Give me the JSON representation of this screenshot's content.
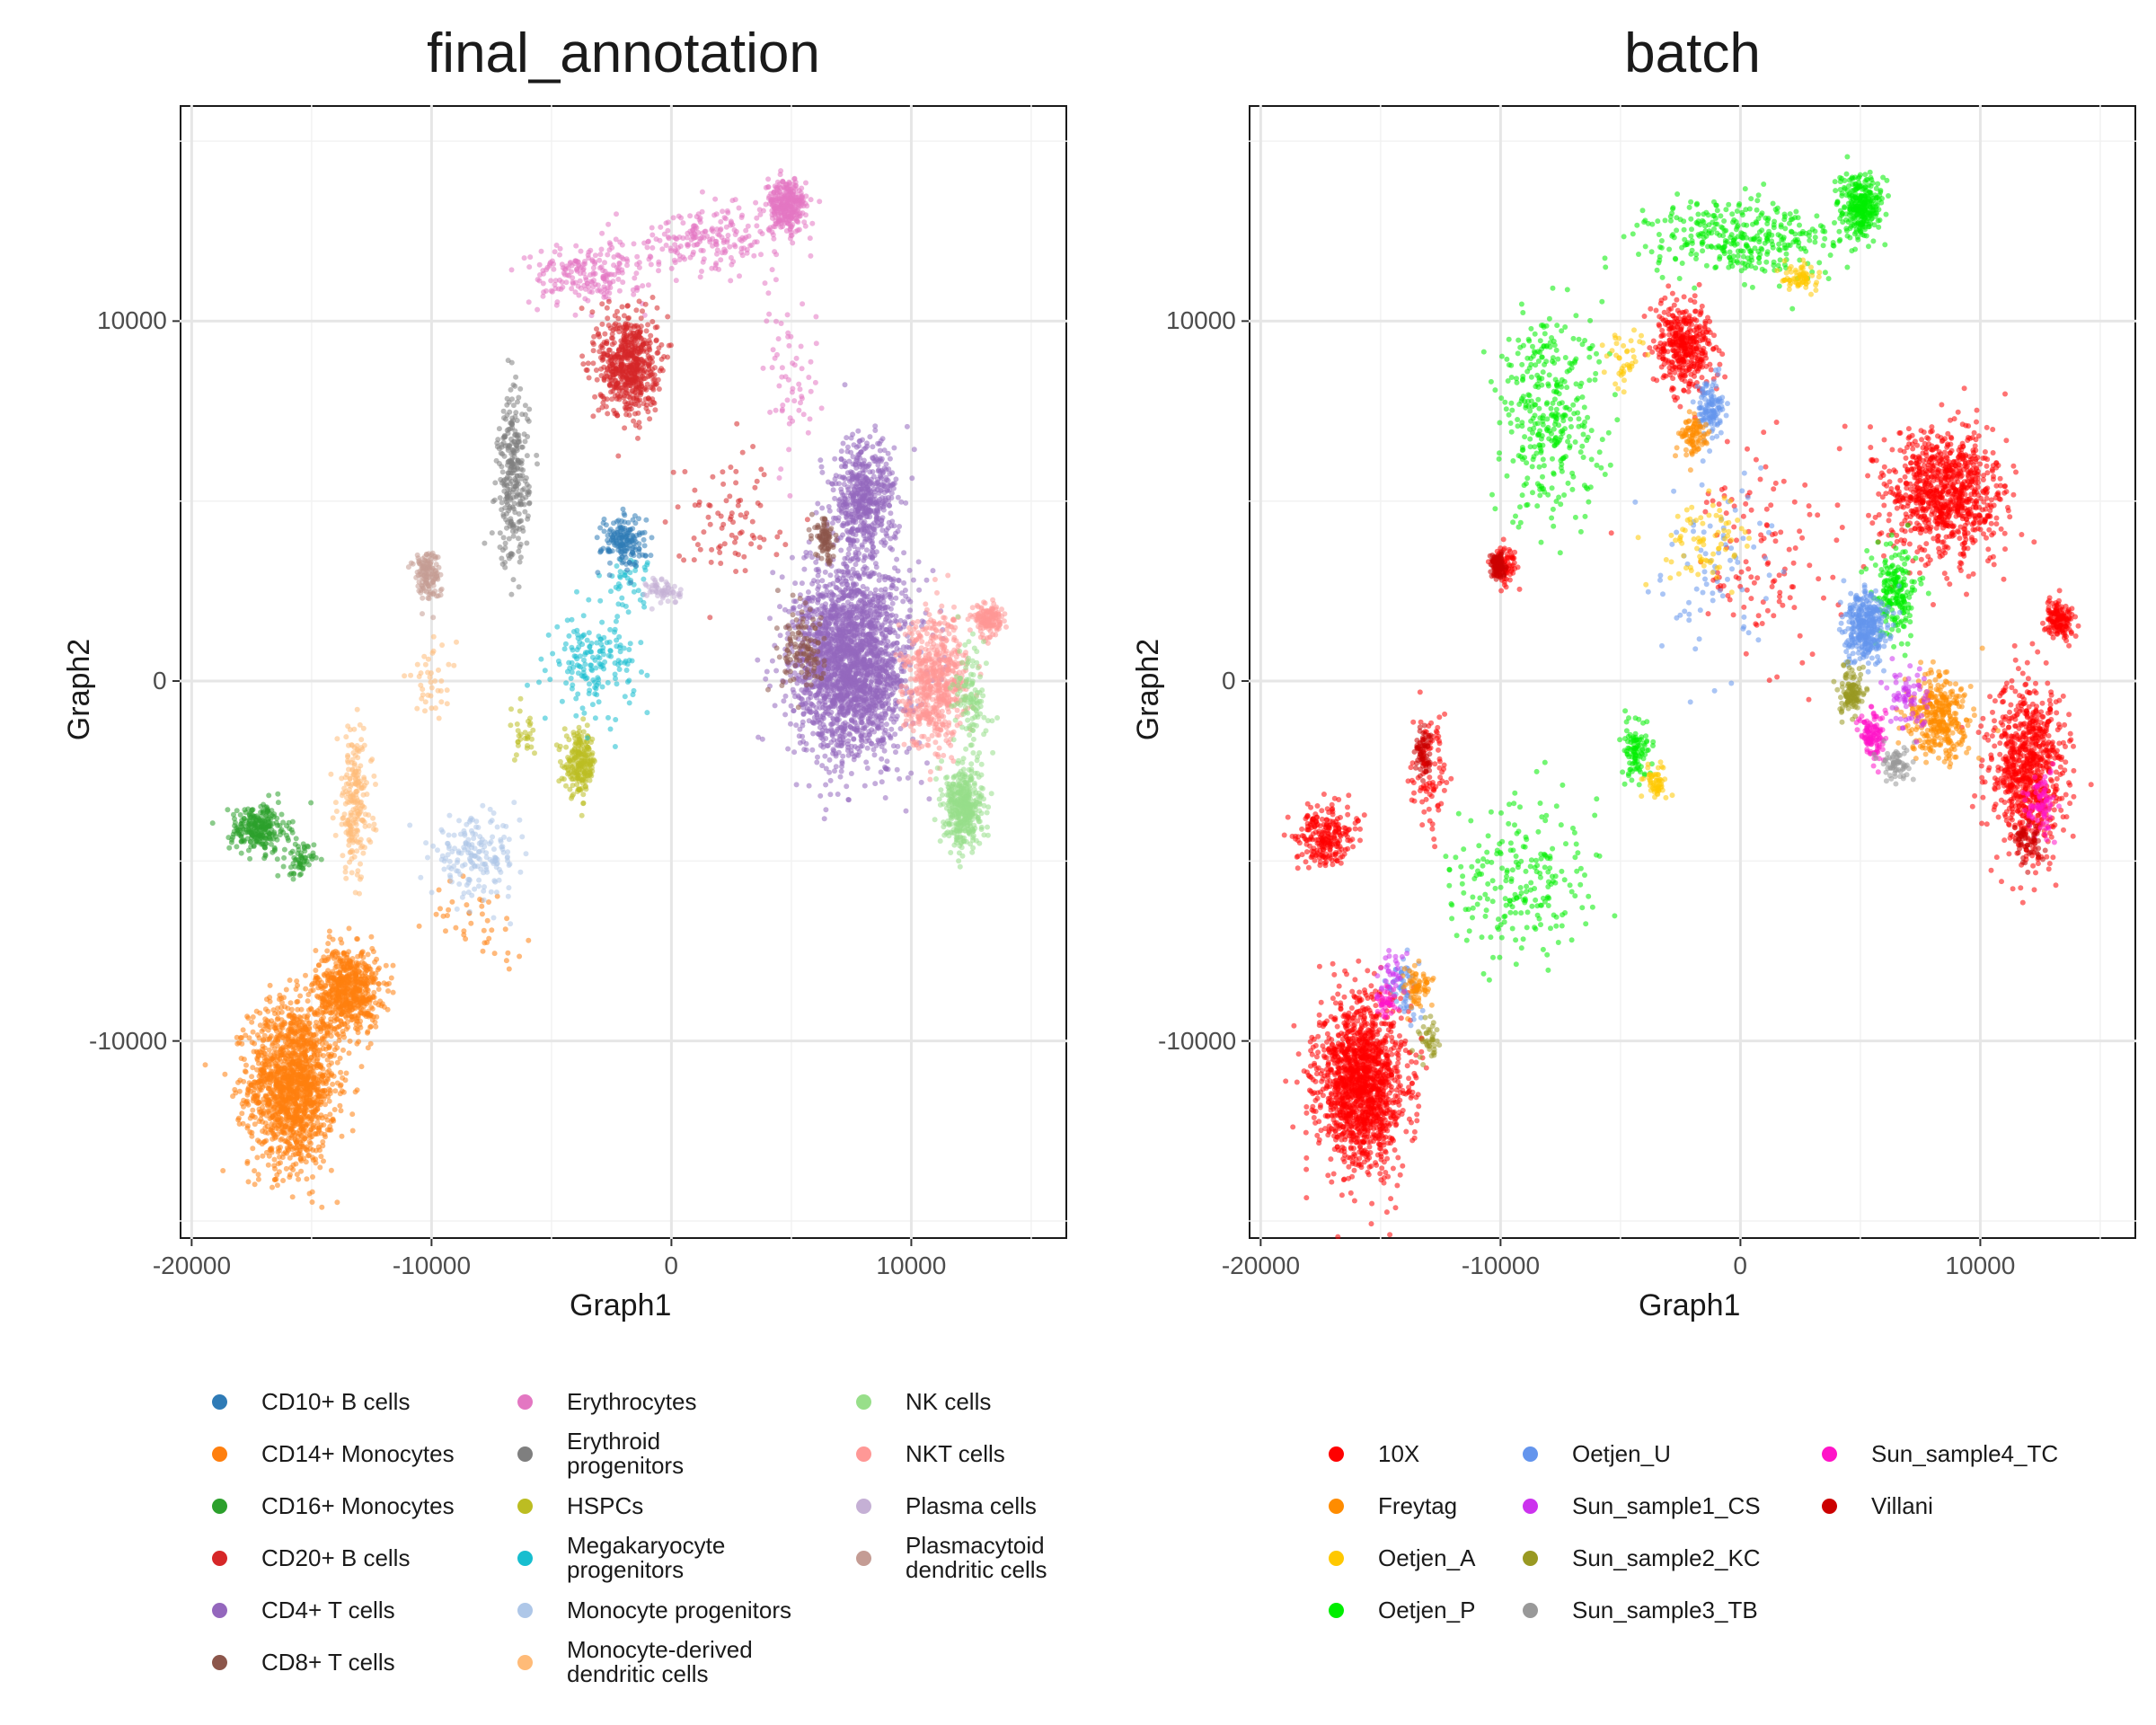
{
  "colors": {
    "celltypes": {
      "CD10+ B cells": "#2f7bb6",
      "CD14+ Monocytes": "#ff7f0e",
      "CD16+ Monocytes": "#2ca02c",
      "CD20+ B cells": "#d62728",
      "CD4+ T cells": "#9467bd",
      "CD8+ T cells": "#8c564b",
      "Erythrocytes": "#e377c2",
      "Erythroid progenitors": "#7f7f7f",
      "HSPCs": "#bcbd22",
      "Megakaryocyte progenitors": "#17becf",
      "Monocyte progenitors": "#aec7e8",
      "Monocyte-derived dendritic cells": "#ffbb78",
      "NK cells": "#98df8a",
      "NKT cells": "#ff9896",
      "Plasma cells": "#c5b0d5",
      "Plasmacytoid dendritic cells": "#c49c94"
    },
    "batches": {
      "10X": "#ff0000",
      "Freytag": "#ff8c00",
      "Oetjen_A": "#ffc800",
      "Oetjen_P": "#00ee00",
      "Oetjen_U": "#6495ed",
      "Sun_sample1_CS": "#cc33ee",
      "Sun_sample2_KC": "#999922",
      "Sun_sample3_TB": "#999999",
      "Sun_sample4_TC": "#ff14c8",
      "Villani": "#cc0000"
    }
  },
  "chart_data": [
    {
      "type": "scatter",
      "title": "final_annotation",
      "xlabel": "Graph1",
      "ylabel": "Graph2",
      "xlim": [
        -20500,
        16500
      ],
      "ylim": [
        -15500,
        16000
      ],
      "xticks": [
        -20000,
        -10000,
        0,
        10000
      ],
      "yticks": [
        -10000,
        0,
        10000
      ],
      "xtick_labels": [
        "-20000",
        "-10000",
        "0",
        "10000"
      ],
      "ytick_labels": [
        "-10000",
        "0",
        "10000"
      ],
      "grid": true,
      "legend_position": "bottom",
      "legend_entries": [
        "CD10+ B cells",
        "CD14+ Monocytes",
        "CD16+ Monocytes",
        "CD20+ B cells",
        "CD4+ T cells",
        "CD8+ T cells",
        "Erythrocytes",
        "Erythroid\nprogenitors",
        "HSPCs",
        "Megakaryocyte\nprogenitors",
        "Monocyte progenitors",
        "Monocyte-derived\ndendritic cells",
        "NK cells",
        "NKT cells",
        "Plasma cells",
        "Plasmacytoid\ndendritic cells"
      ],
      "clusters": [
        {
          "label": "CD14+ Monocytes",
          "center": [
            -15800,
            -11200
          ],
          "spread": [
            1500,
            1900
          ],
          "n": 1500
        },
        {
          "label": "CD14+ Monocytes",
          "center": [
            -13500,
            -8600
          ],
          "spread": [
            1100,
            1000
          ],
          "n": 650
        },
        {
          "label": "CD14+ Monocytes",
          "center": [
            -8000,
            -6600
          ],
          "spread": [
            1800,
            900
          ],
          "n": 40
        },
        {
          "label": "CD16+ Monocytes",
          "center": [
            -17200,
            -4100
          ],
          "spread": [
            1000,
            550
          ],
          "n": 260
        },
        {
          "label": "CD16+ Monocytes",
          "center": [
            -15500,
            -5000
          ],
          "spread": [
            500,
            400
          ],
          "n": 60
        },
        {
          "label": "Monocyte-derived dendritic cells",
          "center": [
            -13200,
            -3400
          ],
          "spread": [
            600,
            1700
          ],
          "n": 220
        },
        {
          "label": "Monocyte-derived dendritic cells",
          "center": [
            -10000,
            0
          ],
          "spread": [
            900,
            800
          ],
          "n": 40
        },
        {
          "label": "Monocyte progenitors",
          "center": [
            -8200,
            -4900
          ],
          "spread": [
            1500,
            900
          ],
          "n": 180
        },
        {
          "label": "HSPCs",
          "center": [
            -3800,
            -2300
          ],
          "spread": [
            550,
            700
          ],
          "n": 220
        },
        {
          "label": "HSPCs",
          "center": [
            -6200,
            -1500
          ],
          "spread": [
            600,
            600
          ],
          "n": 30
        },
        {
          "label": "Megakaryocyte progenitors",
          "center": [
            -3200,
            500
          ],
          "spread": [
            1400,
            1100
          ],
          "n": 170
        },
        {
          "label": "Megakaryocyte progenitors",
          "center": [
            -1800,
            2800
          ],
          "spread": [
            800,
            600
          ],
          "n": 40
        },
        {
          "label": "CD10+ B cells",
          "center": [
            -2000,
            3900
          ],
          "spread": [
            750,
            600
          ],
          "n": 170
        },
        {
          "label": "Plasma cells",
          "center": [
            -300,
            2500
          ],
          "spread": [
            600,
            300
          ],
          "n": 60
        },
        {
          "label": "Erythroid progenitors",
          "center": [
            -6600,
            5600
          ],
          "spread": [
            550,
            2000
          ],
          "n": 280
        },
        {
          "label": "Erythrocytes",
          "center": [
            4800,
            13200
          ],
          "spread": [
            700,
            600
          ],
          "n": 320
        },
        {
          "label": "Erythrocytes",
          "center": [
            1500,
            12300
          ],
          "spread": [
            2500,
            700
          ],
          "n": 200
        },
        {
          "label": "Erythrocytes",
          "center": [
            -3500,
            11300
          ],
          "spread": [
            2000,
            700
          ],
          "n": 200
        },
        {
          "label": "Erythrocytes",
          "center": [
            5000,
            8500
          ],
          "spread": [
            1000,
            2000
          ],
          "n": 60
        },
        {
          "label": "CD20+ B cells",
          "center": [
            -1800,
            8800
          ],
          "spread": [
            1000,
            1200
          ],
          "n": 600
        },
        {
          "label": "CD20+ B cells",
          "center": [
            2500,
            4500
          ],
          "spread": [
            2000,
            1500
          ],
          "n": 80
        },
        {
          "label": "Plasmacytoid dendritic cells",
          "center": [
            -10200,
            3000
          ],
          "spread": [
            450,
            600
          ],
          "n": 140
        },
        {
          "label": "CD4+ T cells",
          "center": [
            7500,
            500
          ],
          "spread": [
            2000,
            2200
          ],
          "n": 2200
        },
        {
          "label": "CD4+ T cells",
          "center": [
            8000,
            5000
          ],
          "spread": [
            1100,
            1400
          ],
          "n": 550
        },
        {
          "label": "CD8+ T cells",
          "center": [
            6400,
            3900
          ],
          "spread": [
            350,
            500
          ],
          "n": 90
        },
        {
          "label": "CD8+ T cells",
          "center": [
            5600,
            800
          ],
          "spread": [
            900,
            900
          ],
          "n": 120
        },
        {
          "label": "NKT cells",
          "center": [
            11000,
            0
          ],
          "spread": [
            1100,
            1500
          ],
          "n": 600
        },
        {
          "label": "NKT cells",
          "center": [
            13200,
            1700
          ],
          "spread": [
            500,
            350
          ],
          "n": 150
        },
        {
          "label": "NK cells",
          "center": [
            12200,
            -3500
          ],
          "spread": [
            650,
            900
          ],
          "n": 420
        },
        {
          "label": "NK cells",
          "center": [
            12500,
            -500
          ],
          "spread": [
            600,
            1300
          ],
          "n": 120
        }
      ]
    },
    {
      "type": "scatter",
      "title": "batch",
      "xlabel": "Graph1",
      "ylabel": "Graph2",
      "xlim": [
        -20500,
        16500
      ],
      "ylim": [
        -15500,
        16000
      ],
      "xticks": [
        -20000,
        -10000,
        0,
        10000
      ],
      "yticks": [
        -10000,
        0,
        10000
      ],
      "xtick_labels": [
        "-20000",
        "-10000",
        "0",
        "10000"
      ],
      "ytick_labels": [
        "-10000",
        "0",
        "10000"
      ],
      "grid": true,
      "legend_position": "bottom",
      "legend_entries": [
        "10X",
        "Freytag",
        "Oetjen_A",
        "Oetjen_P",
        "Oetjen_U",
        "Sun_sample1_CS",
        "Sun_sample2_KC",
        "Sun_sample3_TB",
        "Sun_sample4_TC",
        "Villani"
      ],
      "clusters": [
        {
          "label": "10X",
          "center": [
            -15800,
            -11200
          ],
          "spread": [
            1500,
            1900
          ],
          "n": 1500
        },
        {
          "label": "10X",
          "center": [
            -17300,
            -4300
          ],
          "spread": [
            1000,
            700
          ],
          "n": 240
        },
        {
          "label": "10X",
          "center": [
            8500,
            5200
          ],
          "spread": [
            2000,
            1500
          ],
          "n": 900
        },
        {
          "label": "10X",
          "center": [
            12000,
            -2500
          ],
          "spread": [
            1300,
            2000
          ],
          "n": 800
        },
        {
          "label": "10X",
          "center": [
            13300,
            1700
          ],
          "spread": [
            500,
            400
          ],
          "n": 150
        },
        {
          "label": "10X",
          "center": [
            -2300,
            9300
          ],
          "spread": [
            1000,
            1000
          ],
          "n": 400
        },
        {
          "label": "10X",
          "center": [
            1000,
            3500
          ],
          "spread": [
            3000,
            2500
          ],
          "n": 120
        },
        {
          "label": "10X",
          "center": [
            -9800,
            3200
          ],
          "spread": [
            400,
            400
          ],
          "n": 80
        },
        {
          "label": "10X",
          "center": [
            -13000,
            -2500
          ],
          "spread": [
            600,
            1200
          ],
          "n": 90
        },
        {
          "label": "Oetjen_P",
          "center": [
            5000,
            13200
          ],
          "spread": [
            700,
            700
          ],
          "n": 300
        },
        {
          "label": "Oetjen_P",
          "center": [
            0,
            12300
          ],
          "spread": [
            3500,
            900
          ],
          "n": 350
        },
        {
          "label": "Oetjen_P",
          "center": [
            -8000,
            7500
          ],
          "spread": [
            1800,
            2500
          ],
          "n": 350
        },
        {
          "label": "Oetjen_P",
          "center": [
            -9000,
            -5500
          ],
          "spread": [
            2500,
            1800
          ],
          "n": 220
        },
        {
          "label": "Oetjen_P",
          "center": [
            -4300,
            -2000
          ],
          "spread": [
            500,
            700
          ],
          "n": 100
        },
        {
          "label": "Oetjen_P",
          "center": [
            6500,
            2500
          ],
          "spread": [
            800,
            1000
          ],
          "n": 200
        },
        {
          "label": "Oetjen_U",
          "center": [
            5200,
            1500
          ],
          "spread": [
            700,
            800
          ],
          "n": 350
        },
        {
          "label": "Oetjen_U",
          "center": [
            -1300,
            7600
          ],
          "spread": [
            500,
            700
          ],
          "n": 120
        },
        {
          "label": "Oetjen_U",
          "center": [
            -1000,
            3000
          ],
          "spread": [
            2500,
            2500
          ],
          "n": 80
        },
        {
          "label": "Oetjen_U",
          "center": [
            -14000,
            -8500
          ],
          "spread": [
            600,
            700
          ],
          "n": 60
        },
        {
          "label": "Freytag",
          "center": [
            8200,
            -1000
          ],
          "spread": [
            1000,
            1000
          ],
          "n": 350
        },
        {
          "label": "Freytag",
          "center": [
            -2000,
            6800
          ],
          "spread": [
            500,
            500
          ],
          "n": 90
        },
        {
          "label": "Freytag",
          "center": [
            -13500,
            -8500
          ],
          "spread": [
            500,
            500
          ],
          "n": 70
        },
        {
          "label": "Oetjen_A",
          "center": [
            2500,
            11200
          ],
          "spread": [
            700,
            300
          ],
          "n": 70
        },
        {
          "label": "Oetjen_A",
          "center": [
            -3500,
            -2800
          ],
          "spread": [
            400,
            400
          ],
          "n": 60
        },
        {
          "label": "Oetjen_A",
          "center": [
            -1500,
            4000
          ],
          "spread": [
            1500,
            1000
          ],
          "n": 80
        },
        {
          "label": "Oetjen_A",
          "center": [
            -5000,
            9000
          ],
          "spread": [
            800,
            700
          ],
          "n": 40
        },
        {
          "label": "Sun_sample4_TC",
          "center": [
            5500,
            -1500
          ],
          "spread": [
            400,
            600
          ],
          "n": 120
        },
        {
          "label": "Sun_sample4_TC",
          "center": [
            12500,
            -3500
          ],
          "spread": [
            500,
            700
          ],
          "n": 80
        },
        {
          "label": "Sun_sample4_TC",
          "center": [
            -14800,
            -9000
          ],
          "spread": [
            400,
            400
          ],
          "n": 40
        },
        {
          "label": "Sun_sample2_KC",
          "center": [
            4600,
            -300
          ],
          "spread": [
            400,
            600
          ],
          "n": 120
        },
        {
          "label": "Sun_sample2_KC",
          "center": [
            -13000,
            -10000
          ],
          "spread": [
            400,
            700
          ],
          "n": 40
        },
        {
          "label": "Sun_sample3_TB",
          "center": [
            6500,
            -2300
          ],
          "spread": [
            500,
            400
          ],
          "n": 70
        },
        {
          "label": "Sun_sample1_CS",
          "center": [
            7000,
            -500
          ],
          "spread": [
            700,
            700
          ],
          "n": 70
        },
        {
          "label": "Sun_sample1_CS",
          "center": [
            -14500,
            -8000
          ],
          "spread": [
            500,
            500
          ],
          "n": 30
        },
        {
          "label": "Villani",
          "center": [
            -10100,
            3200
          ],
          "spread": [
            300,
            300
          ],
          "n": 90
        },
        {
          "label": "Villani",
          "center": [
            -13200,
            -2000
          ],
          "spread": [
            300,
            600
          ],
          "n": 70
        },
        {
          "label": "Villani",
          "center": [
            12000,
            -4500
          ],
          "spread": [
            500,
            500
          ],
          "n": 60
        }
      ]
    }
  ]
}
